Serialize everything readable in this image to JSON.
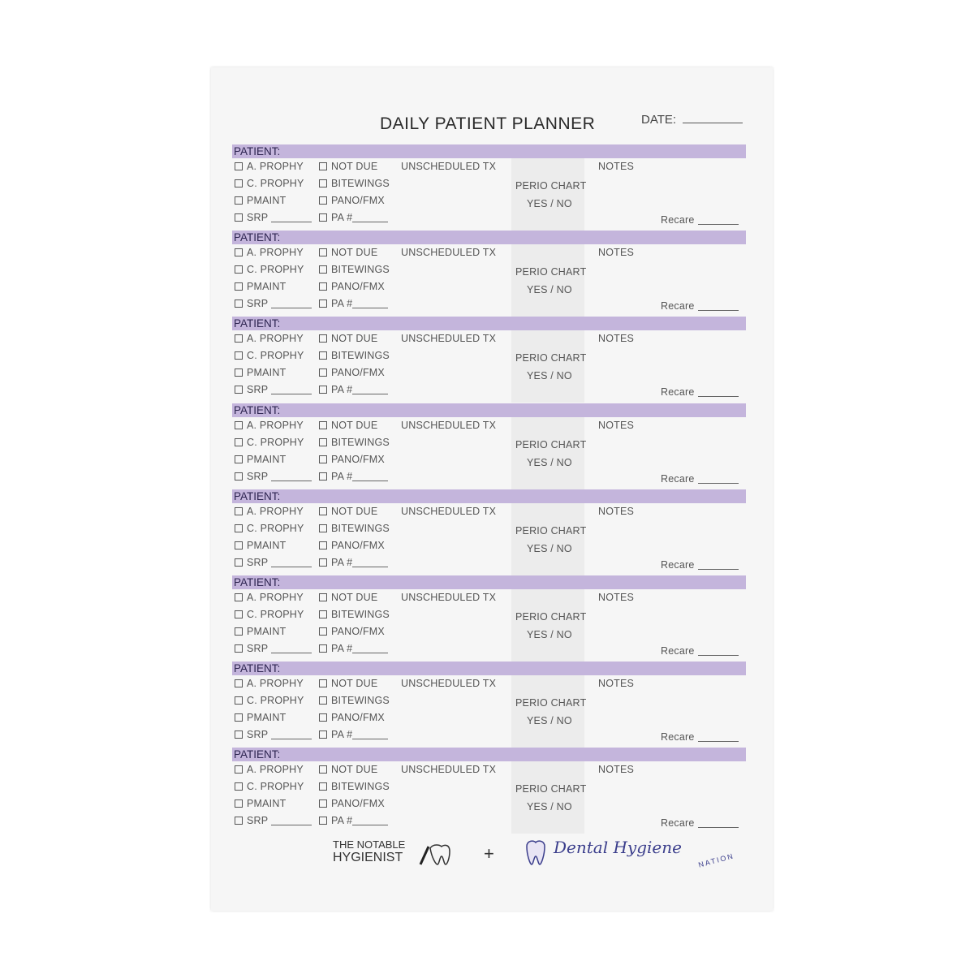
{
  "header": {
    "title": "DAILY PATIENT PLANNER",
    "date_label": "DATE:"
  },
  "block": {
    "patient_label": "PATIENT:",
    "col1": [
      "A. PROPHY",
      "C. PROPHY",
      "PMAINT",
      "SRP"
    ],
    "col2": [
      "NOT DUE",
      "BITEWINGS",
      "PANO/FMX",
      "PA #"
    ],
    "unscheduled": "UNSCHEDULED TX",
    "perio_chart": "PERIO CHART",
    "yes_no": "YES / NO",
    "notes": "NOTES",
    "recare": "Recare"
  },
  "block_count": 8,
  "footer": {
    "brand_left_line1": "THE NOTABLE",
    "brand_left_line2": "HYGIENIST",
    "plus": "+",
    "brand_right": "Dental Hygiene",
    "brand_right_sub": "NATION"
  },
  "colors": {
    "bar": "#c4b5dc",
    "brand_blue": "#3b3e8c"
  }
}
